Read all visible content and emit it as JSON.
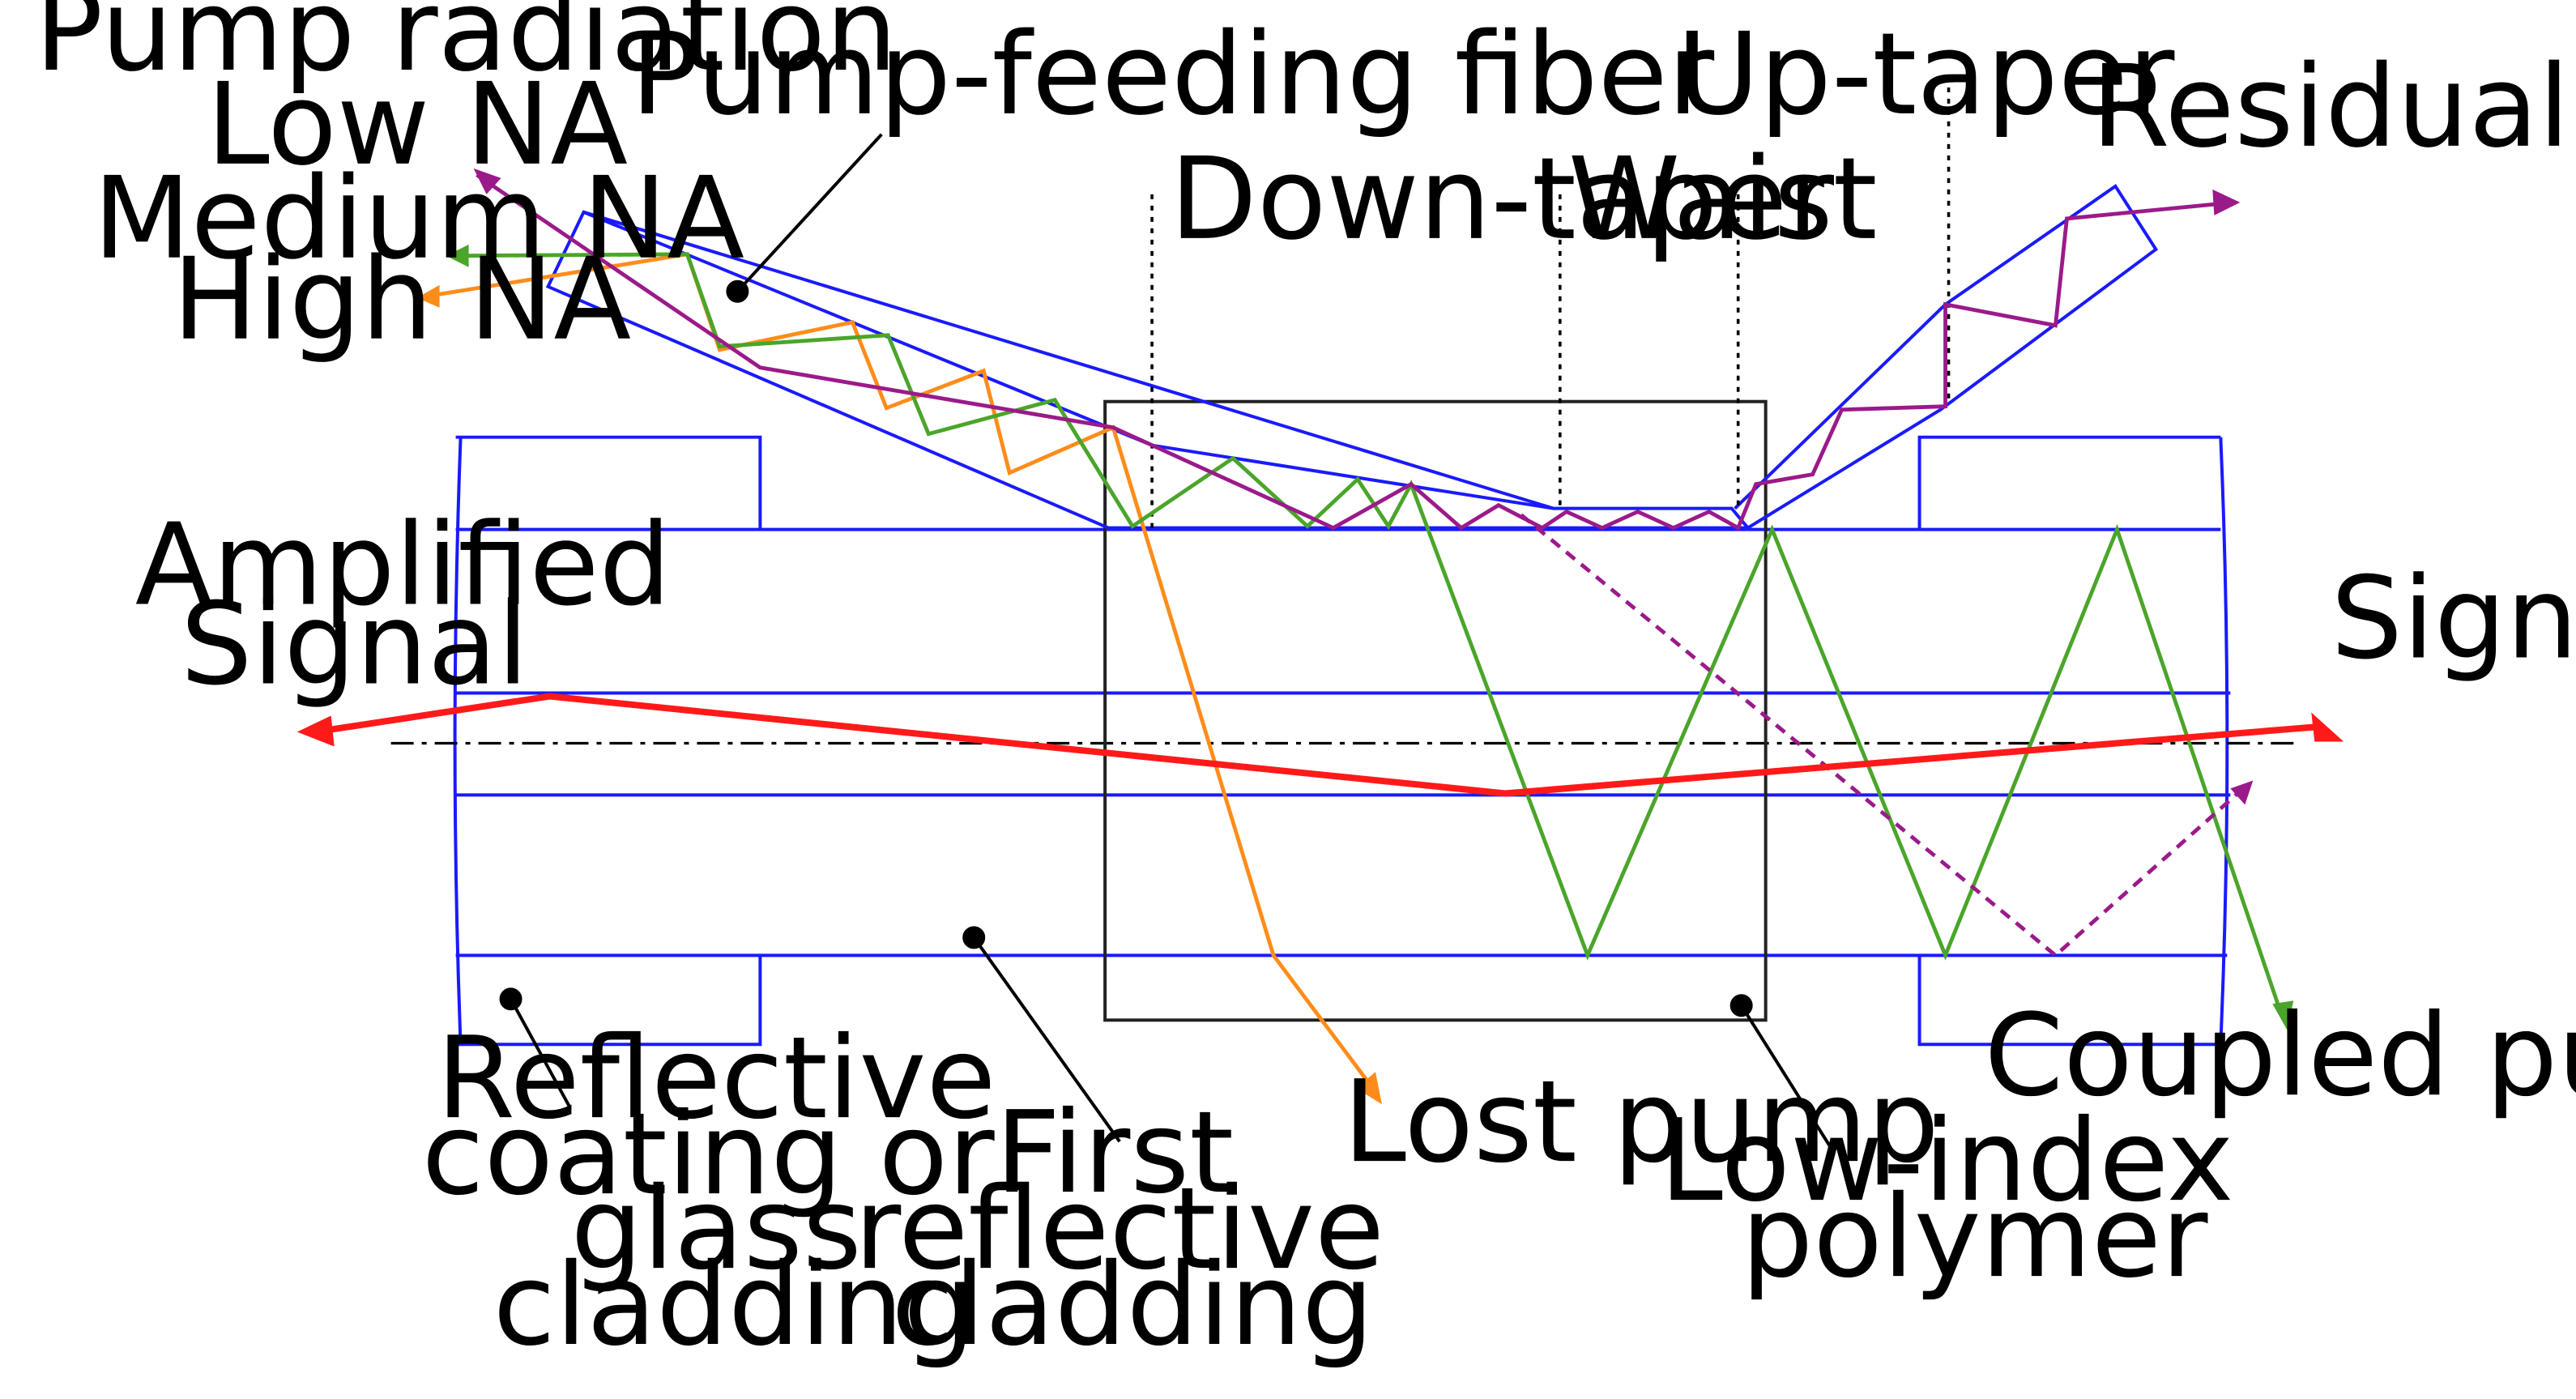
{
  "colors": {
    "fiber": "#1a1aff",
    "signal": "#ff1a1a",
    "low_na": "#9b1a8a",
    "medium_na": "#4aa52a",
    "high_na": "#ff8c1a",
    "box": "#222222",
    "text": "#000000"
  },
  "labels": {
    "pump_radiation": "Pump radiation",
    "low_na": "Low NA",
    "medium_na": "Medium NA",
    "high_na": "High NA",
    "pump_feeding_fiber": "Pump-feeding fiber",
    "up_taper": "Up-taper",
    "down_taper": "Down-taper",
    "waist": "Waist",
    "residual_pump": "Residual pump",
    "amplified_signal_line1": "Amplified",
    "amplified_signal_line2": "Signal",
    "signal": "Signal",
    "coupled_pump": "Coupled pump",
    "lost_pump": "Lost pump",
    "reflective_coating": [
      "Reflective",
      "coating or",
      "glass",
      "cladding"
    ],
    "first_reflective_cladding": [
      "First",
      "reflective",
      "cladding"
    ],
    "low_index_polymer": [
      "Low-index",
      "polymer"
    ]
  }
}
